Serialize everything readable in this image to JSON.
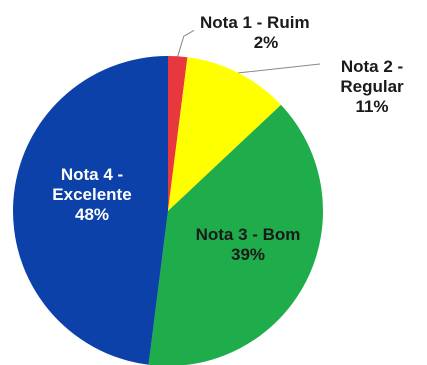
{
  "chart_data": {
    "type": "pie",
    "slices": [
      {
        "name": "Nota 1 - Ruim",
        "value": 2,
        "label_line1": "Nota 1 - Ruim",
        "label_line2": "",
        "pct_label": "2%",
        "color": "#E8383D"
      },
      {
        "name": "Nota 2 - Regular",
        "value": 11,
        "label_line1": "Nota 2 -",
        "label_line2": "Regular",
        "pct_label": "11%",
        "color": "#FFFF00"
      },
      {
        "name": "Nota 3 - Bom",
        "value": 39,
        "label_line1": "Nota 3 - Bom",
        "label_line2": "",
        "pct_label": "39%",
        "color": "#1FAD4B"
      },
      {
        "name": "Nota 4 - Excelente",
        "value": 48,
        "label_line1": "Nota 4 -",
        "label_line2": "Excelente",
        "pct_label": "48%",
        "color": "#0B41A8"
      }
    ],
    "label_color_outside": "#1a1a1a",
    "label_color_inside_dark": "#ffffff",
    "label_color_inside_light": "#1a1a1a",
    "leader_line_color": "#888888"
  }
}
